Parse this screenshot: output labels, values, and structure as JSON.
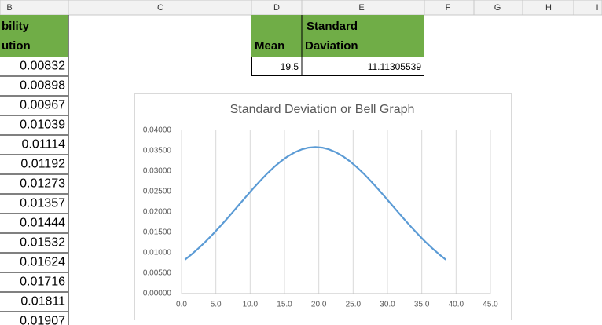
{
  "column_headers": [
    "B",
    "C",
    "D",
    "E",
    "F",
    "G",
    "H",
    "I"
  ],
  "column_b": {
    "header_lines": [
      "bility",
      "ution"
    ],
    "values": [
      "0.00832",
      "0.00898",
      "0.00967",
      "0.01039",
      "0.01114",
      "0.01192",
      "0.01273",
      "0.01357",
      "0.01444",
      "0.01532",
      "0.01624",
      "0.01716",
      "0.01811",
      "0.01907"
    ]
  },
  "stats": {
    "mean_header": "Mean",
    "std_header_lines": [
      "Standard",
      "Daviation"
    ],
    "mean": "19.5",
    "std": "11.11305539"
  },
  "chart_data": {
    "type": "line",
    "title": "Standard Deviation or Bell Graph",
    "x": [
      0.5,
      1.5,
      2.5,
      3.5,
      4.5,
      5.5,
      6.5,
      7.5,
      8.5,
      9.5,
      10.5,
      11.5,
      12.5,
      13.5,
      14.5,
      15.5,
      16.5,
      17.5,
      18.5,
      19.5,
      20.5,
      21.5,
      22.5,
      23.5,
      24.5,
      25.5,
      26.5,
      27.5,
      28.5,
      29.5,
      30.5,
      31.5,
      32.5,
      33.5,
      34.5,
      35.5,
      36.5,
      37.5,
      38.5
    ],
    "values": [
      0.00832,
      0.00967,
      0.01114,
      0.01273,
      0.01444,
      0.01624,
      0.01811,
      0.02004,
      0.02199,
      0.02395,
      0.02586,
      0.0277,
      0.02944,
      0.03103,
      0.03244,
      0.03365,
      0.03461,
      0.03532,
      0.03575,
      0.0359,
      0.03575,
      0.03532,
      0.03461,
      0.03365,
      0.03244,
      0.03103,
      0.02944,
      0.0277,
      0.02586,
      0.02395,
      0.02199,
      0.02004,
      0.01811,
      0.01624,
      0.01444,
      0.01273,
      0.01114,
      0.00967,
      0.00832
    ],
    "color": "#5b9bd5",
    "xlim": [
      0,
      45
    ],
    "xticks": [
      {
        "value": 0,
        "label": "0.0"
      },
      {
        "value": 5,
        "label": "5.0"
      },
      {
        "value": 10,
        "label": "10.0"
      },
      {
        "value": 15,
        "label": "15.0"
      },
      {
        "value": 20,
        "label": "20.0"
      },
      {
        "value": 25,
        "label": "25.0"
      },
      {
        "value": 30,
        "label": "30.0"
      },
      {
        "value": 35,
        "label": "35.0"
      },
      {
        "value": 40,
        "label": "40.0"
      },
      {
        "value": 45,
        "label": "45.0"
      }
    ],
    "ylim": [
      0,
      0.04
    ],
    "yticks": [
      {
        "value": 0,
        "label": "0.00000"
      },
      {
        "value": 0.005,
        "label": "0.00500"
      },
      {
        "value": 0.01,
        "label": "0.01000"
      },
      {
        "value": 0.015,
        "label": "0.01500"
      },
      {
        "value": 0.02,
        "label": "0.02000"
      },
      {
        "value": 0.025,
        "label": "0.02500"
      },
      {
        "value": 0.03,
        "label": "0.03000"
      },
      {
        "value": 0.035,
        "label": "0.03500"
      },
      {
        "value": 0.04,
        "label": "0.04000"
      }
    ],
    "grid": "x"
  }
}
